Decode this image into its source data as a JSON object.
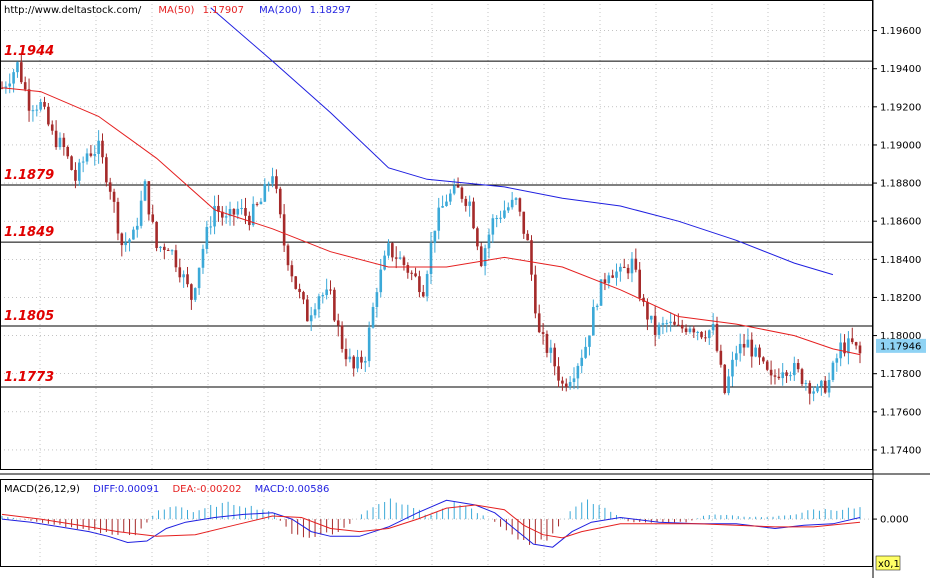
{
  "header": {
    "site": "http://www.deltastock.com/",
    "ma50_label": "MA(50)",
    "ma50_value": "1.17907",
    "ma200_label": "MA(200)",
    "ma200_value": "1.18297"
  },
  "macd_header": {
    "label": "MACD(26,12,9)",
    "diff": "DIFF:0.00091",
    "dea": "DEA:-0.00202",
    "macd": "MACD:0.00586"
  },
  "colors": {
    "up": "#3ba9d8",
    "down": "#a52a2a",
    "ma50": "#e52020",
    "ma200": "#1f1fe0",
    "level_label": "#e00000",
    "price_tag": "#8fd3f4",
    "macd_diff": "#1f1fe0",
    "macd_dea": "#e52020"
  },
  "chart_data": [
    {
      "type": "candlestick",
      "title": "",
      "ylim": [
        1.173,
        1.1975
      ],
      "yticks": [
        "1.19600",
        "1.19400",
        "1.19200",
        "1.19000",
        "1.18800",
        "1.18600",
        "1.18400",
        "1.18200",
        "1.18000",
        "1.17800",
        "1.17600",
        "1.17400"
      ],
      "current_price": "1.17946",
      "levels": [
        {
          "label": "1.1944",
          "value": 1.1944
        },
        {
          "label": "1.1879",
          "value": 1.1879
        },
        {
          "label": "1.1849",
          "value": 1.1849
        },
        {
          "label": "1.1805",
          "value": 1.1805
        },
        {
          "label": "1.1773",
          "value": 1.1773
        }
      ],
      "series": {
        "close_path": [
          [
            0,
            1.193
          ],
          [
            8,
            1.1942
          ],
          [
            14,
            1.1922
          ],
          [
            20,
            1.1921
          ],
          [
            26,
            1.1905
          ],
          [
            32,
            1.1898
          ],
          [
            38,
            1.1882
          ],
          [
            44,
            1.1896
          ],
          [
            50,
            1.1898
          ],
          [
            56,
            1.1878
          ],
          [
            62,
            1.1848
          ],
          [
            68,
            1.1852
          ],
          [
            74,
            1.1878
          ],
          [
            80,
            1.1846
          ],
          [
            86,
            1.1848
          ],
          [
            92,
            1.1835
          ],
          [
            98,
            1.182
          ],
          [
            104,
            1.1846
          ],
          [
            110,
            1.1868
          ],
          [
            116,
            1.186
          ],
          [
            122,
            1.1866
          ],
          [
            128,
            1.1862
          ],
          [
            134,
            1.187
          ],
          [
            140,
            1.1886
          ],
          [
            146,
            1.1848
          ],
          [
            152,
            1.1826
          ],
          [
            158,
            1.181
          ],
          [
            164,
            1.1822
          ],
          [
            170,
            1.182
          ],
          [
            176,
            1.1795
          ],
          [
            182,
            1.1782
          ],
          [
            188,
            1.179
          ],
          [
            194,
            1.1826
          ],
          [
            200,
            1.1845
          ],
          [
            206,
            1.184
          ],
          [
            212,
            1.1832
          ],
          [
            218,
            1.1825
          ],
          [
            224,
            1.1858
          ],
          [
            230,
            1.1872
          ],
          [
            236,
            1.1876
          ],
          [
            242,
            1.187
          ],
          [
            248,
            1.184
          ],
          [
            254,
            1.186
          ],
          [
            260,
            1.1866
          ],
          [
            266,
            1.187
          ],
          [
            272,
            1.1848
          ],
          [
            278,
            1.18
          ],
          [
            284,
            1.179
          ],
          [
            290,
            1.1774
          ],
          [
            296,
            1.1782
          ],
          [
            302,
            1.1795
          ],
          [
            308,
            1.182
          ],
          [
            314,
            1.1835
          ],
          [
            320,
            1.1832
          ],
          [
            326,
            1.1838
          ],
          [
            332,
            1.1815
          ],
          [
            338,
            1.1802
          ],
          [
            344,
            1.1806
          ],
          [
            350,
            1.1803
          ],
          [
            356,
            1.1806
          ],
          [
            362,
            1.1802
          ],
          [
            368,
            1.1803
          ],
          [
            374,
            1.177
          ],
          [
            380,
            1.1792
          ],
          [
            386,
            1.1796
          ],
          [
            392,
            1.1786
          ],
          [
            398,
            1.1776
          ],
          [
            404,
            1.1784
          ],
          [
            410,
            1.1782
          ],
          [
            416,
            1.1776
          ],
          [
            422,
            1.177
          ],
          [
            428,
            1.1776
          ],
          [
            434,
            1.1794
          ],
          [
            440,
            1.1795
          ],
          [
            444,
            1.179
          ]
        ],
        "ma50": [
          [
            0,
            1.193
          ],
          [
            20,
            1.1928
          ],
          [
            50,
            1.1915
          ],
          [
            80,
            1.1893
          ],
          [
            110,
            1.1866
          ],
          [
            140,
            1.1856
          ],
          [
            170,
            1.1844
          ],
          [
            200,
            1.1836
          ],
          [
            230,
            1.1836
          ],
          [
            260,
            1.1841
          ],
          [
            290,
            1.1836
          ],
          [
            320,
            1.1824
          ],
          [
            350,
            1.181
          ],
          [
            380,
            1.1806
          ],
          [
            410,
            1.18
          ],
          [
            430,
            1.1793
          ],
          [
            444,
            1.179
          ]
        ],
        "ma200": [
          [
            108,
            1.1972
          ],
          [
            140,
            1.1944
          ],
          [
            170,
            1.1917
          ],
          [
            200,
            1.1888
          ],
          [
            220,
            1.1882
          ],
          [
            260,
            1.1878
          ],
          [
            290,
            1.1872
          ],
          [
            320,
            1.1868
          ],
          [
            350,
            1.186
          ],
          [
            380,
            1.185
          ],
          [
            410,
            1.1838
          ],
          [
            430,
            1.1832
          ]
        ]
      }
    },
    {
      "type": "macd",
      "ylim": [
        -0.003,
        0.0025
      ],
      "yticks": [
        "0.000"
      ],
      "multiplier_badge": "x0,1",
      "histogram": [
        [
          0,
          0.0002
        ],
        [
          20,
          -0.0002
        ],
        [
          40,
          -0.0006
        ],
        [
          60,
          -0.001
        ],
        [
          70,
          -0.0009
        ],
        [
          80,
          0.0005
        ],
        [
          90,
          0.0009
        ],
        [
          100,
          0.0004
        ],
        [
          110,
          0.0009
        ],
        [
          120,
          0.001
        ],
        [
          140,
          0.0005
        ],
        [
          150,
          -0.001
        ],
        [
          160,
          -0.0012
        ],
        [
          175,
          -0.0008
        ],
        [
          190,
          0.0007
        ],
        [
          200,
          0.0013
        ],
        [
          210,
          0.001
        ],
        [
          220,
          0.0002
        ],
        [
          235,
          0.001
        ],
        [
          245,
          0.0005
        ],
        [
          255,
          -0.0002
        ],
        [
          265,
          -0.001
        ],
        [
          275,
          -0.0018
        ],
        [
          285,
          -0.001
        ],
        [
          295,
          0.0007
        ],
        [
          305,
          0.0012
        ],
        [
          315,
          0.0005
        ],
        [
          325,
          -0.0002
        ],
        [
          340,
          -0.0002
        ],
        [
          355,
          -0.0002
        ],
        [
          365,
          0.0003
        ],
        [
          380,
          0.0002
        ],
        [
          395,
          0.0001
        ],
        [
          410,
          0.0003
        ],
        [
          420,
          0.0006
        ],
        [
          430,
          0.0006
        ],
        [
          444,
          0.0007
        ]
      ],
      "diff": [
        [
          0,
          0.0
        ],
        [
          15,
          -0.0002
        ],
        [
          30,
          -0.0005
        ],
        [
          45,
          -0.0008
        ],
        [
          55,
          -0.0011
        ],
        [
          65,
          -0.0015
        ],
        [
          75,
          -0.0014
        ],
        [
          85,
          -0.0006
        ],
        [
          95,
          -0.0002
        ],
        [
          110,
          0.0001
        ],
        [
          125,
          0.0003
        ],
        [
          140,
          0.0004
        ],
        [
          150,
          0.0
        ],
        [
          160,
          -0.0008
        ],
        [
          170,
          -0.0011
        ],
        [
          185,
          -0.0011
        ],
        [
          200,
          -0.0005
        ],
        [
          215,
          0.0004
        ],
        [
          230,
          0.0012
        ],
        [
          245,
          0.0009
        ],
        [
          255,
          0.0004
        ],
        [
          265,
          -0.0006
        ],
        [
          275,
          -0.0016
        ],
        [
          285,
          -0.0018
        ],
        [
          295,
          -0.0008
        ],
        [
          305,
          -0.0002
        ],
        [
          320,
          0.0001
        ],
        [
          340,
          -0.0002
        ],
        [
          360,
          -0.0003
        ],
        [
          380,
          -0.0003
        ],
        [
          400,
          -0.0006
        ],
        [
          415,
          -0.0004
        ],
        [
          430,
          -0.0003
        ],
        [
          444,
          0.0001
        ]
      ],
      "dea": [
        [
          0,
          0.0003
        ],
        [
          20,
          0.0
        ],
        [
          40,
          -0.0004
        ],
        [
          60,
          -0.0008
        ],
        [
          80,
          -0.0011
        ],
        [
          100,
          -0.001
        ],
        [
          120,
          -0.0004
        ],
        [
          140,
          0.0002
        ],
        [
          155,
          0.0001
        ],
        [
          170,
          -0.0006
        ],
        [
          185,
          -0.0008
        ],
        [
          200,
          -0.0006
        ],
        [
          215,
          0.0
        ],
        [
          230,
          0.0007
        ],
        [
          245,
          0.0009
        ],
        [
          260,
          0.0006
        ],
        [
          270,
          -0.0004
        ],
        [
          280,
          -0.001
        ],
        [
          290,
          -0.0012
        ],
        [
          300,
          -0.0008
        ],
        [
          320,
          -0.0003
        ],
        [
          340,
          -0.0003
        ],
        [
          360,
          -0.0003
        ],
        [
          380,
          -0.0004
        ],
        [
          400,
          -0.0005
        ],
        [
          420,
          -0.0005
        ],
        [
          444,
          -0.0002
        ]
      ]
    }
  ]
}
